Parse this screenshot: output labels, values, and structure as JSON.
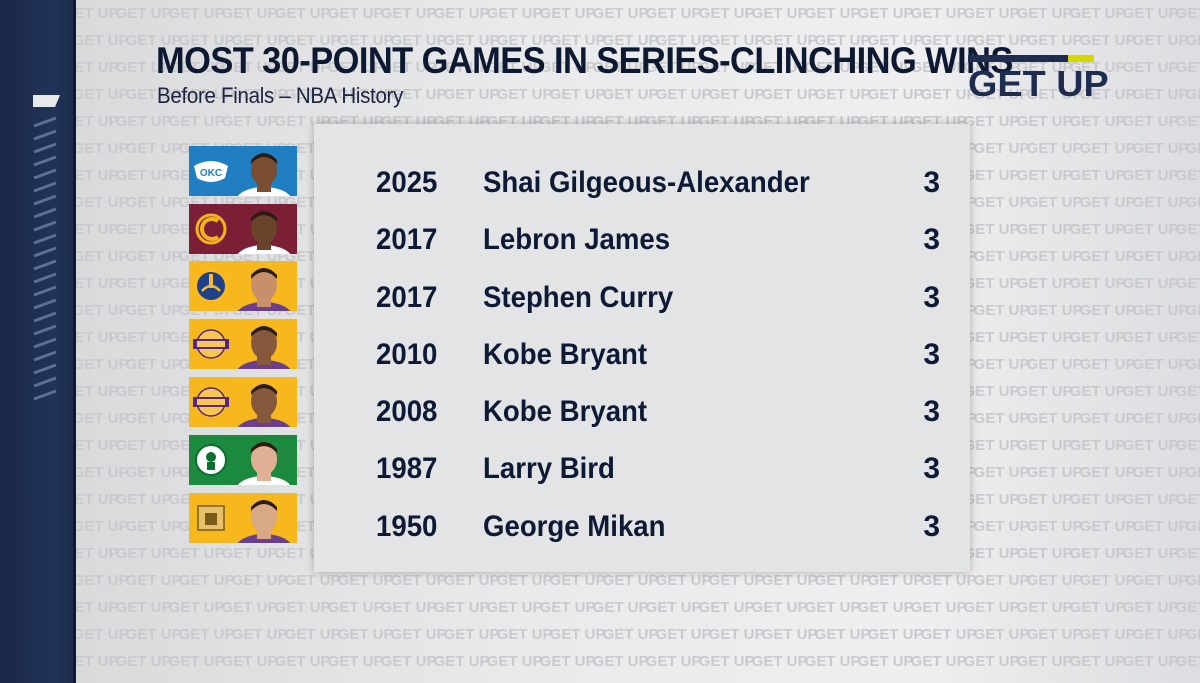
{
  "title": "MOST 30-POINT GAMES IN SERIES-CLINCHING WINS",
  "subtitle": "Before Finals – NBA History",
  "logo": {
    "text": "GET UP"
  },
  "watermark_text": "GET UP",
  "rows": [
    {
      "year": "2025",
      "player": "Shai Gilgeous-Alexander",
      "count": "3",
      "team": "okc-thunder-logo",
      "team_color": "#1f7fc2",
      "skin": "#7b4e32"
    },
    {
      "year": "2017",
      "player": "Lebron James",
      "count": "3",
      "team": "cleveland-cavaliers-logo",
      "team_color": "#7a1f36",
      "skin": "#6a432c"
    },
    {
      "year": "2017",
      "player": "Stephen Curry",
      "count": "3",
      "team": "golden-state-warriors-logo",
      "team_color": "#f6b81c",
      "skin": "#c78f6a"
    },
    {
      "year": "2010",
      "player": "Kobe Bryant",
      "count": "3",
      "team": "los-angeles-lakers-logo",
      "team_color": "#f6b81c",
      "skin": "#86593c"
    },
    {
      "year": "2008",
      "player": "Kobe Bryant",
      "count": "3",
      "team": "los-angeles-lakers-logo",
      "team_color": "#f6b81c",
      "skin": "#86593c"
    },
    {
      "year": "1987",
      "player": "Larry Bird",
      "count": "3",
      "team": "boston-celtics-logo",
      "team_color": "#1c8a3e",
      "skin": "#e0b095"
    },
    {
      "year": "1950",
      "player": "George Mikan",
      "count": "3",
      "team": "minneapolis-lakers-logo",
      "team_color": "#f6b81c",
      "skin": "#d9a986"
    }
  ],
  "colors": {
    "navy": "#0e1a35",
    "accent": "#d8d600",
    "panel": "#e3e4e6"
  }
}
